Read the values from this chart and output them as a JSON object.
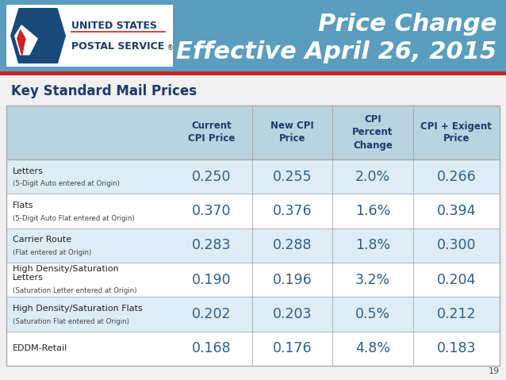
{
  "title_line1": "Price Change",
  "title_line2": "Effective April 26, 2015",
  "section_title": "Key Standard Mail Prices",
  "col_headers": [
    "Current\nCPI Price",
    "New CPI\nPrice",
    "CPI\nPercent\nChange",
    "CPI + Exigent\nPrice"
  ],
  "rows": [
    {
      "label_main": "Letters",
      "label_sub": "(5-Digit Auto entered at Origin)",
      "values": [
        "0.250",
        "0.255",
        "2.0%",
        "0.266"
      ]
    },
    {
      "label_main": "Flats",
      "label_sub": "(5-Digit Auto Flat entered at Origin)",
      "values": [
        "0.370",
        "0.376",
        "1.6%",
        "0.394"
      ]
    },
    {
      "label_main": "Carrier Route",
      "label_sub": "(Flat entered at Origin)",
      "values": [
        "0.283",
        "0.288",
        "1.8%",
        "0.300"
      ]
    },
    {
      "label_main": "High Density/Saturation\nLetters",
      "label_sub": "(Saturation Letter entered at Origin)",
      "values": [
        "0.190",
        "0.196",
        "3.2%",
        "0.204"
      ]
    },
    {
      "label_main": "High Density/Saturation Flats",
      "label_sub": "(Saturation Flat entered at Origin)",
      "values": [
        "0.202",
        "0.203",
        "0.5%",
        "0.212"
      ]
    },
    {
      "label_main": "EDDM-Retail",
      "label_sub": "",
      "values": [
        "0.168",
        "0.176",
        "4.8%",
        "0.183"
      ]
    }
  ],
  "header_bg": "#b8d4e0",
  "row_bg_alt": "#deedf5",
  "row_bg_white": "#ffffff",
  "title_bg": "#5b9dbe",
  "title_color": "#ffffff",
  "section_title_color": "#1a3a6b",
  "header_text_color": "#1a3a6b",
  "value_text_color": "#2c5f8a",
  "label_main_color": "#222222",
  "label_sub_color": "#444444",
  "page_number": "19",
  "divider_color": "#aaaaaa",
  "red_stripe_color": "#cc2222",
  "fig_bg": "#f0f0f0"
}
